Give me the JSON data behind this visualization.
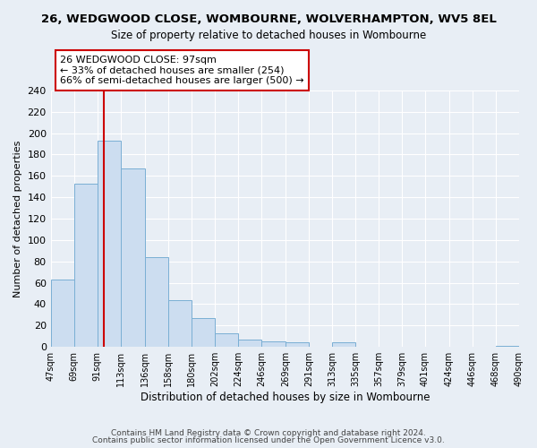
{
  "title": "26, WEDGWOOD CLOSE, WOMBOURNE, WOLVERHAMPTON, WV5 8EL",
  "subtitle": "Size of property relative to detached houses in Wombourne",
  "xlabel": "Distribution of detached houses by size in Wombourne",
  "ylabel": "Number of detached properties",
  "bins": [
    47,
    69,
    91,
    113,
    136,
    158,
    180,
    202,
    224,
    246,
    269,
    291,
    313,
    335,
    357,
    379,
    401,
    424,
    446,
    468,
    490
  ],
  "bin_labels": [
    "47sqm",
    "69sqm",
    "91sqm",
    "113sqm",
    "136sqm",
    "158sqm",
    "180sqm",
    "202sqm",
    "224sqm",
    "246sqm",
    "269sqm",
    "291sqm",
    "313sqm",
    "335sqm",
    "357sqm",
    "379sqm",
    "401sqm",
    "424sqm",
    "446sqm",
    "468sqm",
    "490sqm"
  ],
  "counts": [
    63,
    153,
    193,
    167,
    84,
    44,
    27,
    13,
    7,
    5,
    4,
    0,
    4,
    0,
    0,
    0,
    0,
    0,
    0,
    1
  ],
  "bar_color": "#ccddf0",
  "bar_edge_color": "#7aafd4",
  "property_line_x": 97,
  "property_line_color": "#cc0000",
  "ylim": [
    0,
    240
  ],
  "yticks": [
    0,
    20,
    40,
    60,
    80,
    100,
    120,
    140,
    160,
    180,
    200,
    220,
    240
  ],
  "annotation_line1": "26 WEDGWOOD CLOSE: 97sqm",
  "annotation_line2": "← 33% of detached houses are smaller (254)",
  "annotation_line3": "66% of semi-detached houses are larger (500) →",
  "annotation_box_color": "#ffffff",
  "annotation_box_edge": "#cc0000",
  "footer1": "Contains HM Land Registry data © Crown copyright and database right 2024.",
  "footer2": "Contains public sector information licensed under the Open Government Licence v3.0.",
  "background_color": "#e8eef5",
  "grid_color": "#ffffff",
  "plot_bg_color": "#e8eef5"
}
